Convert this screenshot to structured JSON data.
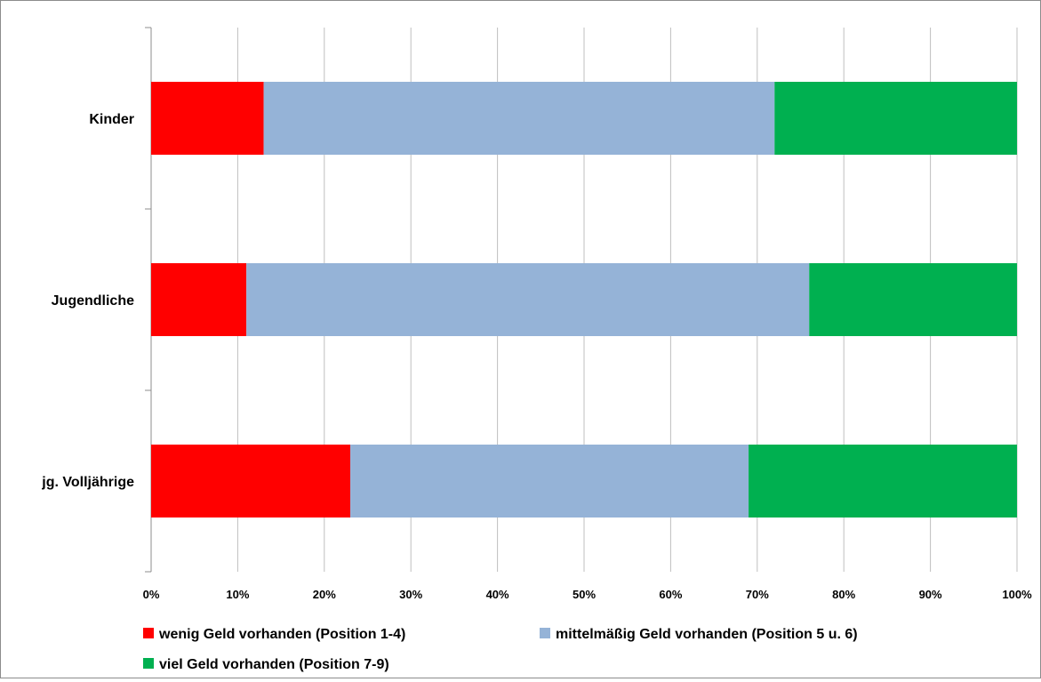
{
  "chart_data": {
    "type": "bar",
    "orientation": "horizontal",
    "stacking": "percent",
    "categories": [
      "Kinder",
      "Jugendliche",
      "jg. Volljährige"
    ],
    "series": [
      {
        "name": "wenig Geld vorhanden (Position 1-4)",
        "color": "#ff0000",
        "values": [
          13,
          11,
          23
        ]
      },
      {
        "name": "mittelmäßig Geld vorhanden (Position 5 u. 6)",
        "color": "#95b3d7",
        "values": [
          59,
          65,
          46
        ]
      },
      {
        "name": "viel Geld vorhanden (Position 7-9)",
        "color": "#00b050",
        "values": [
          28,
          24,
          31
        ]
      }
    ],
    "xlim": [
      0,
      100
    ],
    "xticks": [
      "0%",
      "10%",
      "20%",
      "30%",
      "40%",
      "50%",
      "60%",
      "70%",
      "80%",
      "90%",
      "100%"
    ],
    "grid": "vertical",
    "legend_position": "bottom",
    "title": "",
    "xlabel": "",
    "ylabel": ""
  }
}
